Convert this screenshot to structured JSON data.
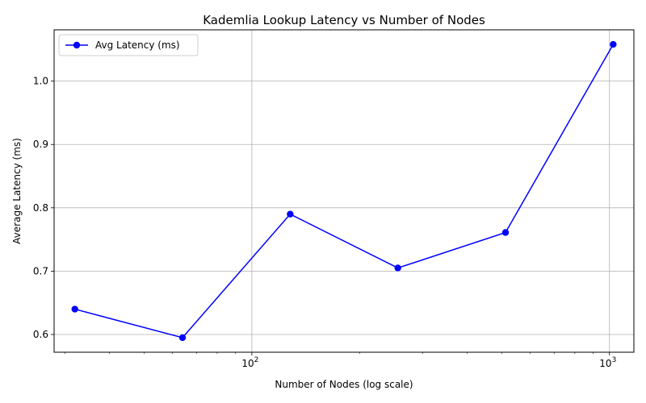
{
  "chart_data": {
    "type": "line",
    "title": "Kademlia Lookup Latency vs Number of Nodes",
    "xlabel": "Number of Nodes (log scale)",
    "ylabel": "Average Latency (ms)",
    "x_scale": "log",
    "xlim": [
      28,
      1170
    ],
    "ylim": [
      0.572,
      1.081
    ],
    "x_major_ticks": [
      {
        "value": 100,
        "base": "10",
        "exp": "2"
      },
      {
        "value": 1000,
        "base": "10",
        "exp": "3"
      }
    ],
    "x_minor_ticks": [
      30,
      40,
      50,
      60,
      70,
      80,
      90,
      200,
      300,
      400,
      500,
      600,
      700,
      800,
      900
    ],
    "y_ticks": [
      0.6,
      0.7,
      0.8,
      0.9,
      1.0
    ],
    "y_tick_labels": [
      "0.6",
      "0.7",
      "0.8",
      "0.9",
      "1.0"
    ],
    "grid": true,
    "legend_position": "upper-left",
    "series": [
      {
        "name": "Avg Latency (ms)",
        "color": "#0000ff",
        "marker": "circle",
        "x": [
          32,
          64,
          128,
          256,
          512,
          1024
        ],
        "y": [
          0.64,
          0.595,
          0.79,
          0.705,
          0.761,
          1.058
        ]
      }
    ]
  }
}
